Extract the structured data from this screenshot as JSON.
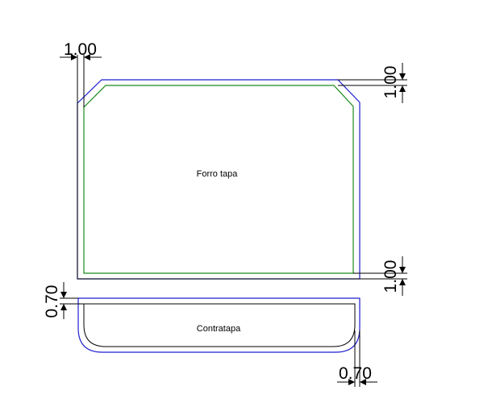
{
  "colors": {
    "background": "#ffffff",
    "outer_outline": "#1f1fd0",
    "inner_outline": "#1a8a1a",
    "cut_line": "#000000",
    "dimension": "#000000"
  },
  "pieces": {
    "forro_tapa": {
      "label": "Forro tapa"
    },
    "contratapa": {
      "label": "Contratapa"
    }
  },
  "dimensions": {
    "top_left": "1.00",
    "top_right": "1.00",
    "bottom_right": "1.00",
    "contratapa_left": "0.70",
    "contratapa_bottom": "0.70"
  }
}
